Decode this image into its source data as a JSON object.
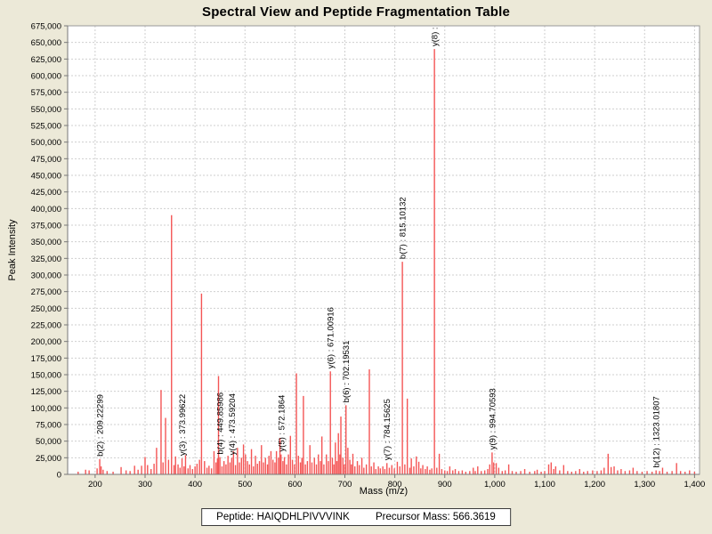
{
  "title": "Spectral View and Peptide Fragmentation Table",
  "footer": {
    "peptide_label": "Peptide:",
    "peptide_sequence": "HAIQDHLPIVVVINK",
    "precursor_label": "Precursor Mass:",
    "precursor_mass": "566.3619"
  },
  "chart_data": {
    "type": "bar",
    "title": "Spectral View and Peptide Fragmentation Table",
    "xlabel": "Mass (m/z)",
    "ylabel": "Peak Intensity",
    "xlim": [
      145,
      1410
    ],
    "ylim": [
      0,
      675000
    ],
    "x_ticks": [
      200,
      300,
      400,
      500,
      600,
      700,
      800,
      900,
      1000,
      1100,
      1200,
      1300,
      1400
    ],
    "y_tick_step": 25000,
    "grid": true,
    "legend": false,
    "colors": {
      "background": "#ece9d8",
      "plot_background": "#ffffff",
      "gridline": "#cfcfcf",
      "axis": "#777777",
      "border": "#999999",
      "peak": "#f45555",
      "label_text": "#000000"
    },
    "annotations": [
      {
        "label": "b(2) : 209.22299",
        "mz": 209.22299
      },
      {
        "label": "y(3) : 373.99622",
        "mz": 373.99622
      },
      {
        "label": "b(4) : 449.85986",
        "mz": 449.85986
      },
      {
        "label": "y(4) : 473.59204",
        "mz": 473.59204
      },
      {
        "label": "y(5) : 572.1864",
        "mz": 572.1864
      },
      {
        "label": "y(6) : 671.00916",
        "mz": 671.00916
      },
      {
        "label": "b(6) : 702.19531",
        "mz": 702.19531
      },
      {
        "label": "y(7) : 784.15625",
        "mz": 784.15625
      },
      {
        "label": "b(7) : 815.10132",
        "mz": 815.10132
      },
      {
        "label": "y(8) :",
        "mz": 879.3
      },
      {
        "label": "y(9) : 994.70593",
        "mz": 994.70593
      },
      {
        "label": "b(12) : 1323.01807",
        "mz": 1323.01807
      }
    ],
    "peaks": [
      [
        166,
        4000
      ],
      [
        181,
        7000
      ],
      [
        188,
        6000
      ],
      [
        204,
        9000
      ],
      [
        209.22299,
        23000
      ],
      [
        212,
        12000
      ],
      [
        216,
        7000
      ],
      [
        224,
        5000
      ],
      [
        236,
        4000
      ],
      [
        252,
        11000
      ],
      [
        262,
        6000
      ],
      [
        270,
        5000
      ],
      [
        279,
        13000
      ],
      [
        286,
        7000
      ],
      [
        293,
        13000
      ],
      [
        300,
        26000
      ],
      [
        305,
        14000
      ],
      [
        312,
        8000
      ],
      [
        318,
        16000
      ],
      [
        323,
        40000
      ],
      [
        332,
        127000
      ],
      [
        336,
        18000
      ],
      [
        341,
        85000
      ],
      [
        347,
        22000
      ],
      [
        353,
        390000
      ],
      [
        358,
        14000
      ],
      [
        361,
        27000
      ],
      [
        366,
        15000
      ],
      [
        370,
        10000
      ],
      [
        373.99622,
        24000
      ],
      [
        378,
        12000
      ],
      [
        381,
        29000
      ],
      [
        386,
        9000
      ],
      [
        390,
        14000
      ],
      [
        395,
        8000
      ],
      [
        400,
        12000
      ],
      [
        404,
        16000
      ],
      [
        409,
        22000
      ],
      [
        413,
        272000
      ],
      [
        419,
        20000
      ],
      [
        424,
        10000
      ],
      [
        428,
        13000
      ],
      [
        433,
        9000
      ],
      [
        438,
        35000
      ],
      [
        442,
        18000
      ],
      [
        445,
        24000
      ],
      [
        447,
        148000
      ],
      [
        449.85986,
        26000
      ],
      [
        454,
        12000
      ],
      [
        458,
        20000
      ],
      [
        462,
        15000
      ],
      [
        466,
        28000
      ],
      [
        470,
        18000
      ],
      [
        473.59204,
        25000
      ],
      [
        477,
        35000
      ],
      [
        481,
        14000
      ],
      [
        485,
        40000
      ],
      [
        489,
        18000
      ],
      [
        493,
        25000
      ],
      [
        497,
        45000
      ],
      [
        501,
        30000
      ],
      [
        505,
        20000
      ],
      [
        509,
        15000
      ],
      [
        513,
        38000
      ],
      [
        517,
        12000
      ],
      [
        521,
        28000
      ],
      [
        525,
        16000
      ],
      [
        529,
        20000
      ],
      [
        533,
        44000
      ],
      [
        537,
        18000
      ],
      [
        541,
        25000
      ],
      [
        545,
        15000
      ],
      [
        548,
        28000
      ],
      [
        552,
        35000
      ],
      [
        556,
        22000
      ],
      [
        560,
        18000
      ],
      [
        563,
        35000
      ],
      [
        567,
        25000
      ],
      [
        570,
        55000
      ],
      [
        572.1864,
        30000
      ],
      [
        576,
        20000
      ],
      [
        579,
        26000
      ],
      [
        583,
        15000
      ],
      [
        587,
        30000
      ],
      [
        591,
        58000
      ],
      [
        595,
        22000
      ],
      [
        599,
        15000
      ],
      [
        603,
        152000
      ],
      [
        607,
        28000
      ],
      [
        611,
        18000
      ],
      [
        614,
        25000
      ],
      [
        617,
        118000
      ],
      [
        621,
        15000
      ],
      [
        625,
        20000
      ],
      [
        630,
        44000
      ],
      [
        634,
        18000
      ],
      [
        639,
        25000
      ],
      [
        643,
        15000
      ],
      [
        647,
        30000
      ],
      [
        651,
        20000
      ],
      [
        654,
        57000
      ],
      [
        658,
        15000
      ],
      [
        663,
        30000
      ],
      [
        667,
        20000
      ],
      [
        671.00916,
        155000
      ],
      [
        675,
        25000
      ],
      [
        678,
        15000
      ],
      [
        681,
        48000
      ],
      [
        684,
        20000
      ],
      [
        687,
        62000
      ],
      [
        690,
        30000
      ],
      [
        692,
        87000
      ],
      [
        696,
        25000
      ],
      [
        699,
        15000
      ],
      [
        702.19531,
        104000
      ],
      [
        706,
        40000
      ],
      [
        710,
        22000
      ],
      [
        713,
        15000
      ],
      [
        716,
        31000
      ],
      [
        720,
        12000
      ],
      [
        725,
        20000
      ],
      [
        729,
        14000
      ],
      [
        734,
        25000
      ],
      [
        738,
        10000
      ],
      [
        743,
        15000
      ],
      [
        749,
        158000
      ],
      [
        753,
        12000
      ],
      [
        758,
        18000
      ],
      [
        762,
        8000
      ],
      [
        767,
        12000
      ],
      [
        771,
        9000
      ],
      [
        776,
        12000
      ],
      [
        780,
        8000
      ],
      [
        784.15625,
        17000
      ],
      [
        789,
        10000
      ],
      [
        794,
        14000
      ],
      [
        799,
        9000
      ],
      [
        805,
        19000
      ],
      [
        810,
        12000
      ],
      [
        815.10132,
        320000
      ],
      [
        820,
        15000
      ],
      [
        825,
        114000
      ],
      [
        830,
        10000
      ],
      [
        833,
        24000
      ],
      [
        838,
        12000
      ],
      [
        843,
        27000
      ],
      [
        848,
        19000
      ],
      [
        852,
        9000
      ],
      [
        856,
        14000
      ],
      [
        861,
        8000
      ],
      [
        865,
        12000
      ],
      [
        870,
        7000
      ],
      [
        874,
        9000
      ],
      [
        879.3,
        640000
      ],
      [
        884,
        10000
      ],
      [
        889,
        31000
      ],
      [
        894,
        8000
      ],
      [
        900,
        6000
      ],
      [
        905,
        5000
      ],
      [
        910,
        12000
      ],
      [
        916,
        6000
      ],
      [
        921,
        8000
      ],
      [
        928,
        5000
      ],
      [
        935,
        6000
      ],
      [
        942,
        4000
      ],
      [
        950,
        5000
      ],
      [
        957,
        10000
      ],
      [
        961,
        5000
      ],
      [
        966,
        12000
      ],
      [
        973,
        5000
      ],
      [
        980,
        6000
      ],
      [
        986,
        8000
      ],
      [
        990,
        15000
      ],
      [
        994.70593,
        33000
      ],
      [
        998,
        18000
      ],
      [
        1003,
        17000
      ],
      [
        1008,
        10000
      ],
      [
        1015,
        5000
      ],
      [
        1021,
        6000
      ],
      [
        1028,
        15000
      ],
      [
        1035,
        5000
      ],
      [
        1043,
        4000
      ],
      [
        1052,
        5000
      ],
      [
        1060,
        8000
      ],
      [
        1070,
        4000
      ],
      [
        1080,
        5000
      ],
      [
        1085,
        7000
      ],
      [
        1093,
        4000
      ],
      [
        1100,
        5000
      ],
      [
        1108,
        15000
      ],
      [
        1113,
        18000
      ],
      [
        1118,
        8000
      ],
      [
        1122,
        12000
      ],
      [
        1130,
        6000
      ],
      [
        1138,
        14000
      ],
      [
        1146,
        5000
      ],
      [
        1154,
        4000
      ],
      [
        1162,
        5000
      ],
      [
        1170,
        8000
      ],
      [
        1178,
        4000
      ],
      [
        1186,
        5000
      ],
      [
        1196,
        6000
      ],
      [
        1205,
        5000
      ],
      [
        1213,
        6000
      ],
      [
        1219,
        10000
      ],
      [
        1227,
        31000
      ],
      [
        1233,
        11000
      ],
      [
        1239,
        12000
      ],
      [
        1246,
        6000
      ],
      [
        1253,
        8000
      ],
      [
        1261,
        5000
      ],
      [
        1270,
        6000
      ],
      [
        1277,
        10000
      ],
      [
        1285,
        5000
      ],
      [
        1295,
        4000
      ],
      [
        1305,
        5000
      ],
      [
        1315,
        4000
      ],
      [
        1323.01807,
        6000
      ],
      [
        1330,
        5000
      ],
      [
        1336,
        10000
      ],
      [
        1345,
        4000
      ],
      [
        1355,
        5000
      ],
      [
        1364,
        17000
      ],
      [
        1372,
        5000
      ],
      [
        1381,
        4000
      ],
      [
        1390,
        6000
      ],
      [
        1400,
        4000
      ]
    ]
  }
}
